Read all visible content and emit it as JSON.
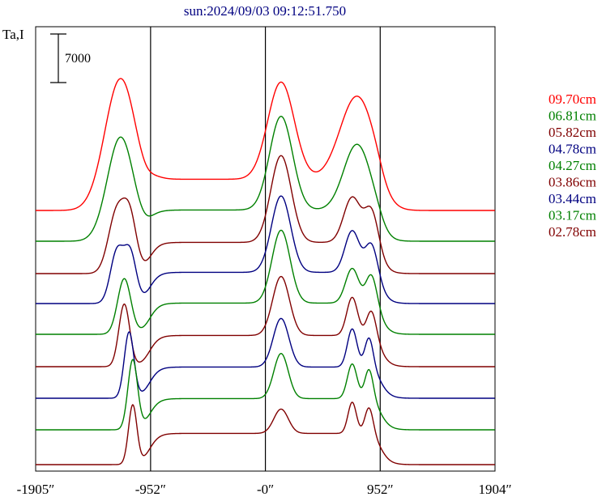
{
  "chart_data": {
    "type": "line",
    "title": "sun:2024/09/03 09:12:51.750",
    "ylabel": "Ta,I",
    "scale_bar_label": "7000",
    "xlim": [
      -1905,
      1904
    ],
    "x_ticks": [
      "-1905″",
      "-952″",
      "-0″",
      "952″",
      "1904″"
    ],
    "x_tick_values": [
      -1905,
      -952,
      0,
      952,
      1904
    ],
    "vertical_lines": [
      -952,
      0,
      952
    ],
    "grid": false,
    "legend_position": "right",
    "series": [
      {
        "name": "09.70cm",
        "color": "#ff0000",
        "baseline": 0,
        "peaks": [
          [
            -1200,
            19000,
            130
          ],
          [
            130,
            14000,
            110
          ],
          [
            760,
            12000,
            140
          ]
        ],
        "fine": []
      },
      {
        "name": "06.81cm",
        "color": "#008000",
        "baseline": 0,
        "peaks": [
          [
            -1200,
            15000,
            110
          ],
          [
            130,
            13500,
            95
          ],
          [
            760,
            9500,
            110
          ]
        ],
        "fine": []
      },
      {
        "name": "05.82cm",
        "color": "#800000",
        "baseline": 0,
        "peaks": [
          [
            -1230,
            9000,
            70
          ],
          [
            -1120,
            7000,
            55
          ],
          [
            130,
            12500,
            85
          ],
          [
            720,
            6500,
            70
          ],
          [
            880,
            5000,
            55
          ]
        ],
        "fine": []
      },
      {
        "name": "04.78cm",
        "color": "#000080",
        "baseline": 0,
        "peaks": [
          [
            -1230,
            7500,
            55
          ],
          [
            -1120,
            7000,
            50
          ],
          [
            130,
            11000,
            80
          ],
          [
            720,
            6000,
            60
          ],
          [
            880,
            4500,
            50
          ]
        ],
        "fine": []
      },
      {
        "name": "04.27cm",
        "color": "#008000",
        "baseline": 0,
        "peaks": [
          [
            -1170,
            8000,
            55
          ],
          [
            130,
            10500,
            75
          ],
          [
            720,
            5000,
            55
          ],
          [
            880,
            4500,
            45
          ]
        ],
        "fine": []
      },
      {
        "name": "03.86cm",
        "color": "#800000",
        "baseline": 0,
        "peaks": [
          [
            -1170,
            9000,
            45
          ],
          [
            130,
            8500,
            70
          ],
          [
            720,
            5500,
            45
          ],
          [
            880,
            4000,
            40
          ]
        ],
        "fine": []
      },
      {
        "name": "03.44cm",
        "color": "#000080",
        "baseline": 0,
        "peaks": [
          [
            -1130,
            9500,
            40
          ],
          [
            130,
            7000,
            65
          ],
          [
            720,
            5500,
            40
          ],
          [
            860,
            4500,
            35
          ]
        ],
        "fine": []
      },
      {
        "name": "03.17cm",
        "color": "#008000",
        "baseline": 0,
        "peaks": [
          [
            -1100,
            10000,
            40
          ],
          [
            130,
            6500,
            60
          ],
          [
            720,
            5000,
            40
          ],
          [
            860,
            4500,
            35
          ]
        ],
        "fine": []
      },
      {
        "name": "02.78cm",
        "color": "#800000",
        "baseline": 0,
        "peaks": [
          [
            -1100,
            8500,
            35
          ],
          [
            130,
            3500,
            60
          ],
          [
            720,
            4500,
            35
          ],
          [
            860,
            4000,
            35
          ]
        ],
        "fine": []
      }
    ]
  }
}
